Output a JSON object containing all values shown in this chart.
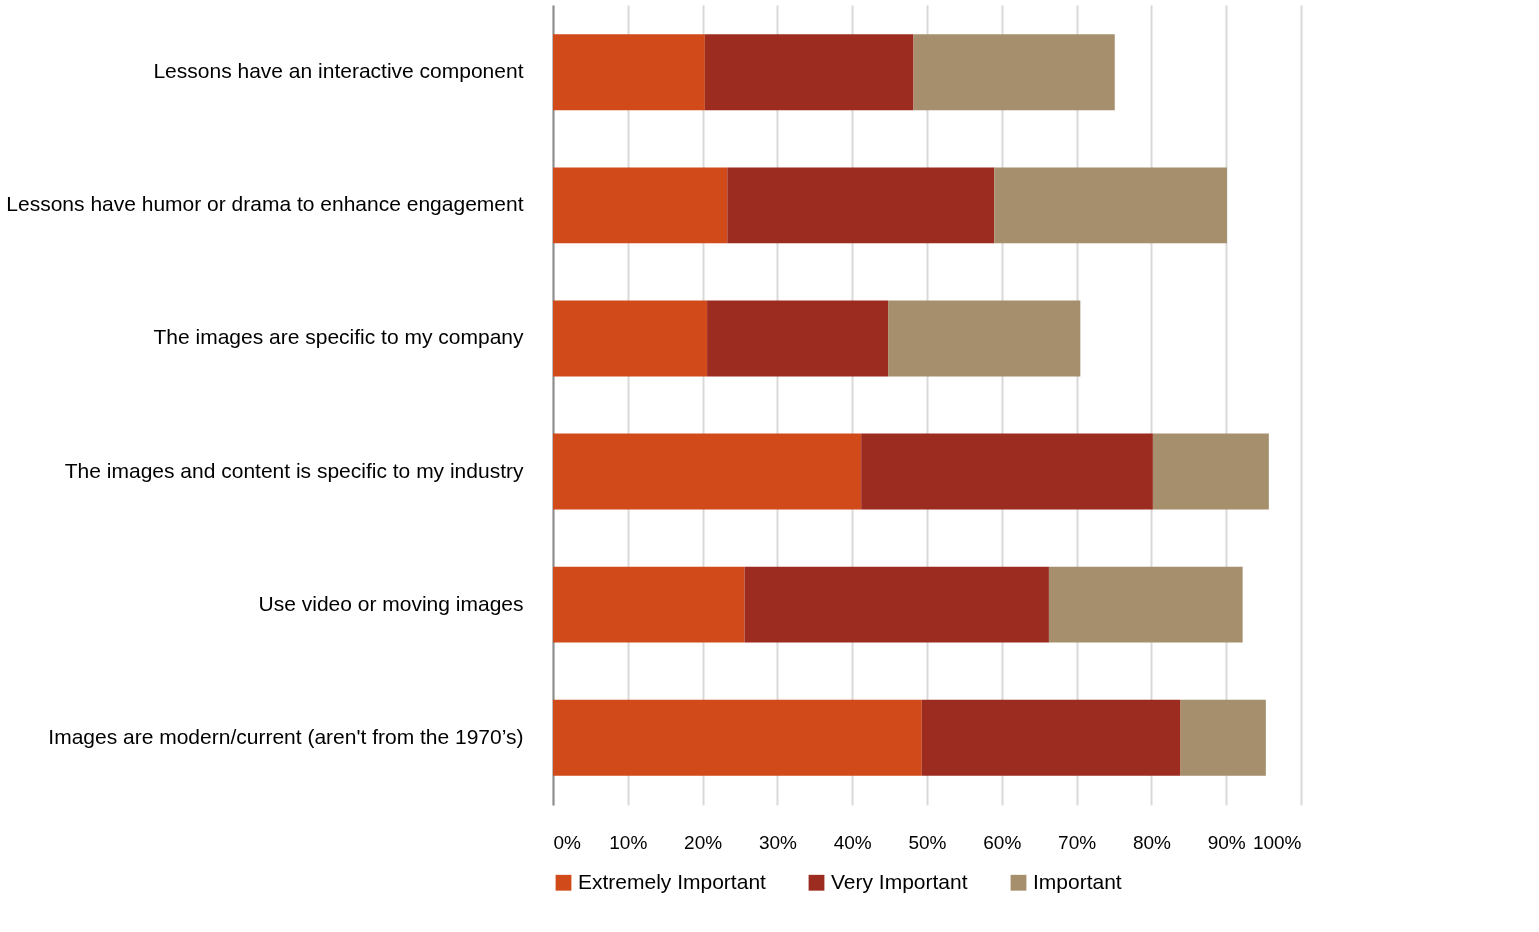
{
  "chart_data": {
    "type": "bar",
    "orientation": "horizontal",
    "stacked": true,
    "categories": [
      "Lessons have an interactive component",
      "Lessons have humor or drama to enhance engagement",
      "The images are specific to my company",
      "The images and content is specific to my industry",
      "Use video or moving images",
      "Images are modern/current (aren't from the 1970’s)"
    ],
    "series": [
      {
        "name": "Extremely Important",
        "color": "#d04a1a",
        "values": [
          20.3,
          23.3,
          20.6,
          41.2,
          25.6,
          49.3
        ]
      },
      {
        "name": "Very Important",
        "color": "#9c2b20",
        "values": [
          27.9,
          35.7,
          24.2,
          39.0,
          40.7,
          34.6
        ]
      },
      {
        "name": "Important",
        "color": "#a58f6c",
        "values": [
          26.9,
          31.1,
          25.7,
          15.5,
          25.9,
          11.4
        ]
      }
    ],
    "xlim": [
      0,
      100
    ],
    "xticks": [
      {
        "value": 0,
        "label": "0%"
      },
      {
        "value": 10,
        "label": "10%"
      },
      {
        "value": 20,
        "label": "20%"
      },
      {
        "value": 30,
        "label": "30%"
      },
      {
        "value": 40,
        "label": "40%"
      },
      {
        "value": 50,
        "label": "50%"
      },
      {
        "value": 60,
        "label": "60%"
      },
      {
        "value": 70,
        "label": "70%"
      },
      {
        "value": 80,
        "label": "80%"
      },
      {
        "value": 90,
        "label": "90%"
      },
      {
        "value": 100,
        "label": "100%"
      }
    ],
    "grid": "x",
    "legend": "bottom"
  }
}
